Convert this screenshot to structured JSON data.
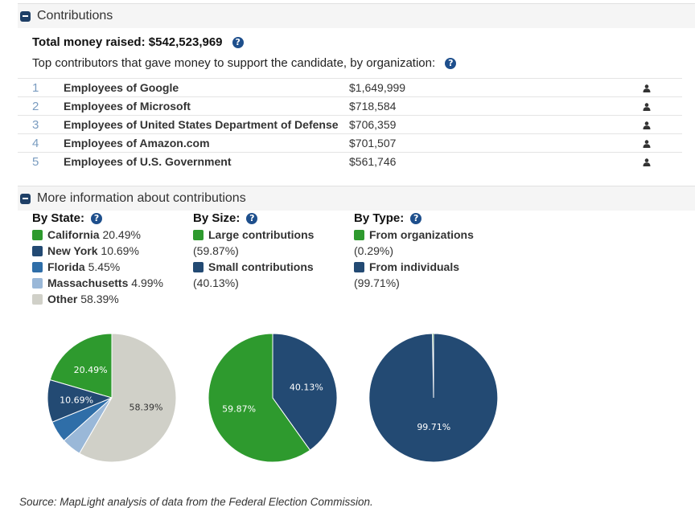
{
  "contributions": {
    "header": "Contributions",
    "total_label": "Total money raised:",
    "total_value": "$542,523,969",
    "top_description": "Top contributors that gave money to support the candidate, by organization:",
    "top_contributors": [
      {
        "rank": "1",
        "org": "Employees of Google",
        "amount": "$1,649,999"
      },
      {
        "rank": "2",
        "org": "Employees of Microsoft",
        "amount": "$718,584"
      },
      {
        "rank": "3",
        "org": "Employees of United States Department of Defense",
        "amount": "$706,359"
      },
      {
        "rank": "4",
        "org": "Employees of Amazon.com",
        "amount": "$701,507"
      },
      {
        "rank": "5",
        "org": "Employees of U.S. Government",
        "amount": "$561,746"
      }
    ]
  },
  "more_info": {
    "header": "More information about contributions",
    "by_state_title": "By State:",
    "by_size_title": "By Size:",
    "by_type_title": "By Type:"
  },
  "colors": {
    "green": "#2e9a2e",
    "dark_blue": "#234a73",
    "mid_blue": "#2f6ea8",
    "light_blue": "#9ab8d8",
    "grey": "#d0d0c8"
  },
  "chart_data": [
    {
      "type": "pie",
      "title": "By State:",
      "categories": [
        "California",
        "New York",
        "Florida",
        "Massachusetts",
        "Other"
      ],
      "values": [
        20.49,
        10.69,
        5.45,
        4.99,
        58.39
      ],
      "legend_values": [
        "20.49%",
        "10.69%",
        "5.45%",
        "4.99%",
        "58.39%"
      ],
      "colors": [
        "#2e9a2e",
        "#234a73",
        "#2f6ea8",
        "#9ab8d8",
        "#d0d0c8"
      ],
      "slice_labels": [
        "20.49%",
        "10.69%",
        "",
        "",
        "58.39%"
      ]
    },
    {
      "type": "pie",
      "title": "By Size:",
      "categories": [
        "Large contributions",
        "Small contributions"
      ],
      "values": [
        59.87,
        40.13
      ],
      "legend_values": [
        "(59.87%)",
        "(40.13%)"
      ],
      "colors": [
        "#2e9a2e",
        "#234a73"
      ],
      "slice_labels": [
        "59.87%",
        "40.13%"
      ]
    },
    {
      "type": "pie",
      "title": "By Type:",
      "categories": [
        "From organizations",
        "From individuals"
      ],
      "values": [
        0.29,
        99.71
      ],
      "legend_values": [
        "(0.29%)",
        "(99.71%)"
      ],
      "colors": [
        "#2e9a2e",
        "#234a73"
      ],
      "slice_labels": [
        "",
        "99.71%"
      ]
    }
  ],
  "source": "Source: MapLight analysis of data from the Federal Election Commission."
}
